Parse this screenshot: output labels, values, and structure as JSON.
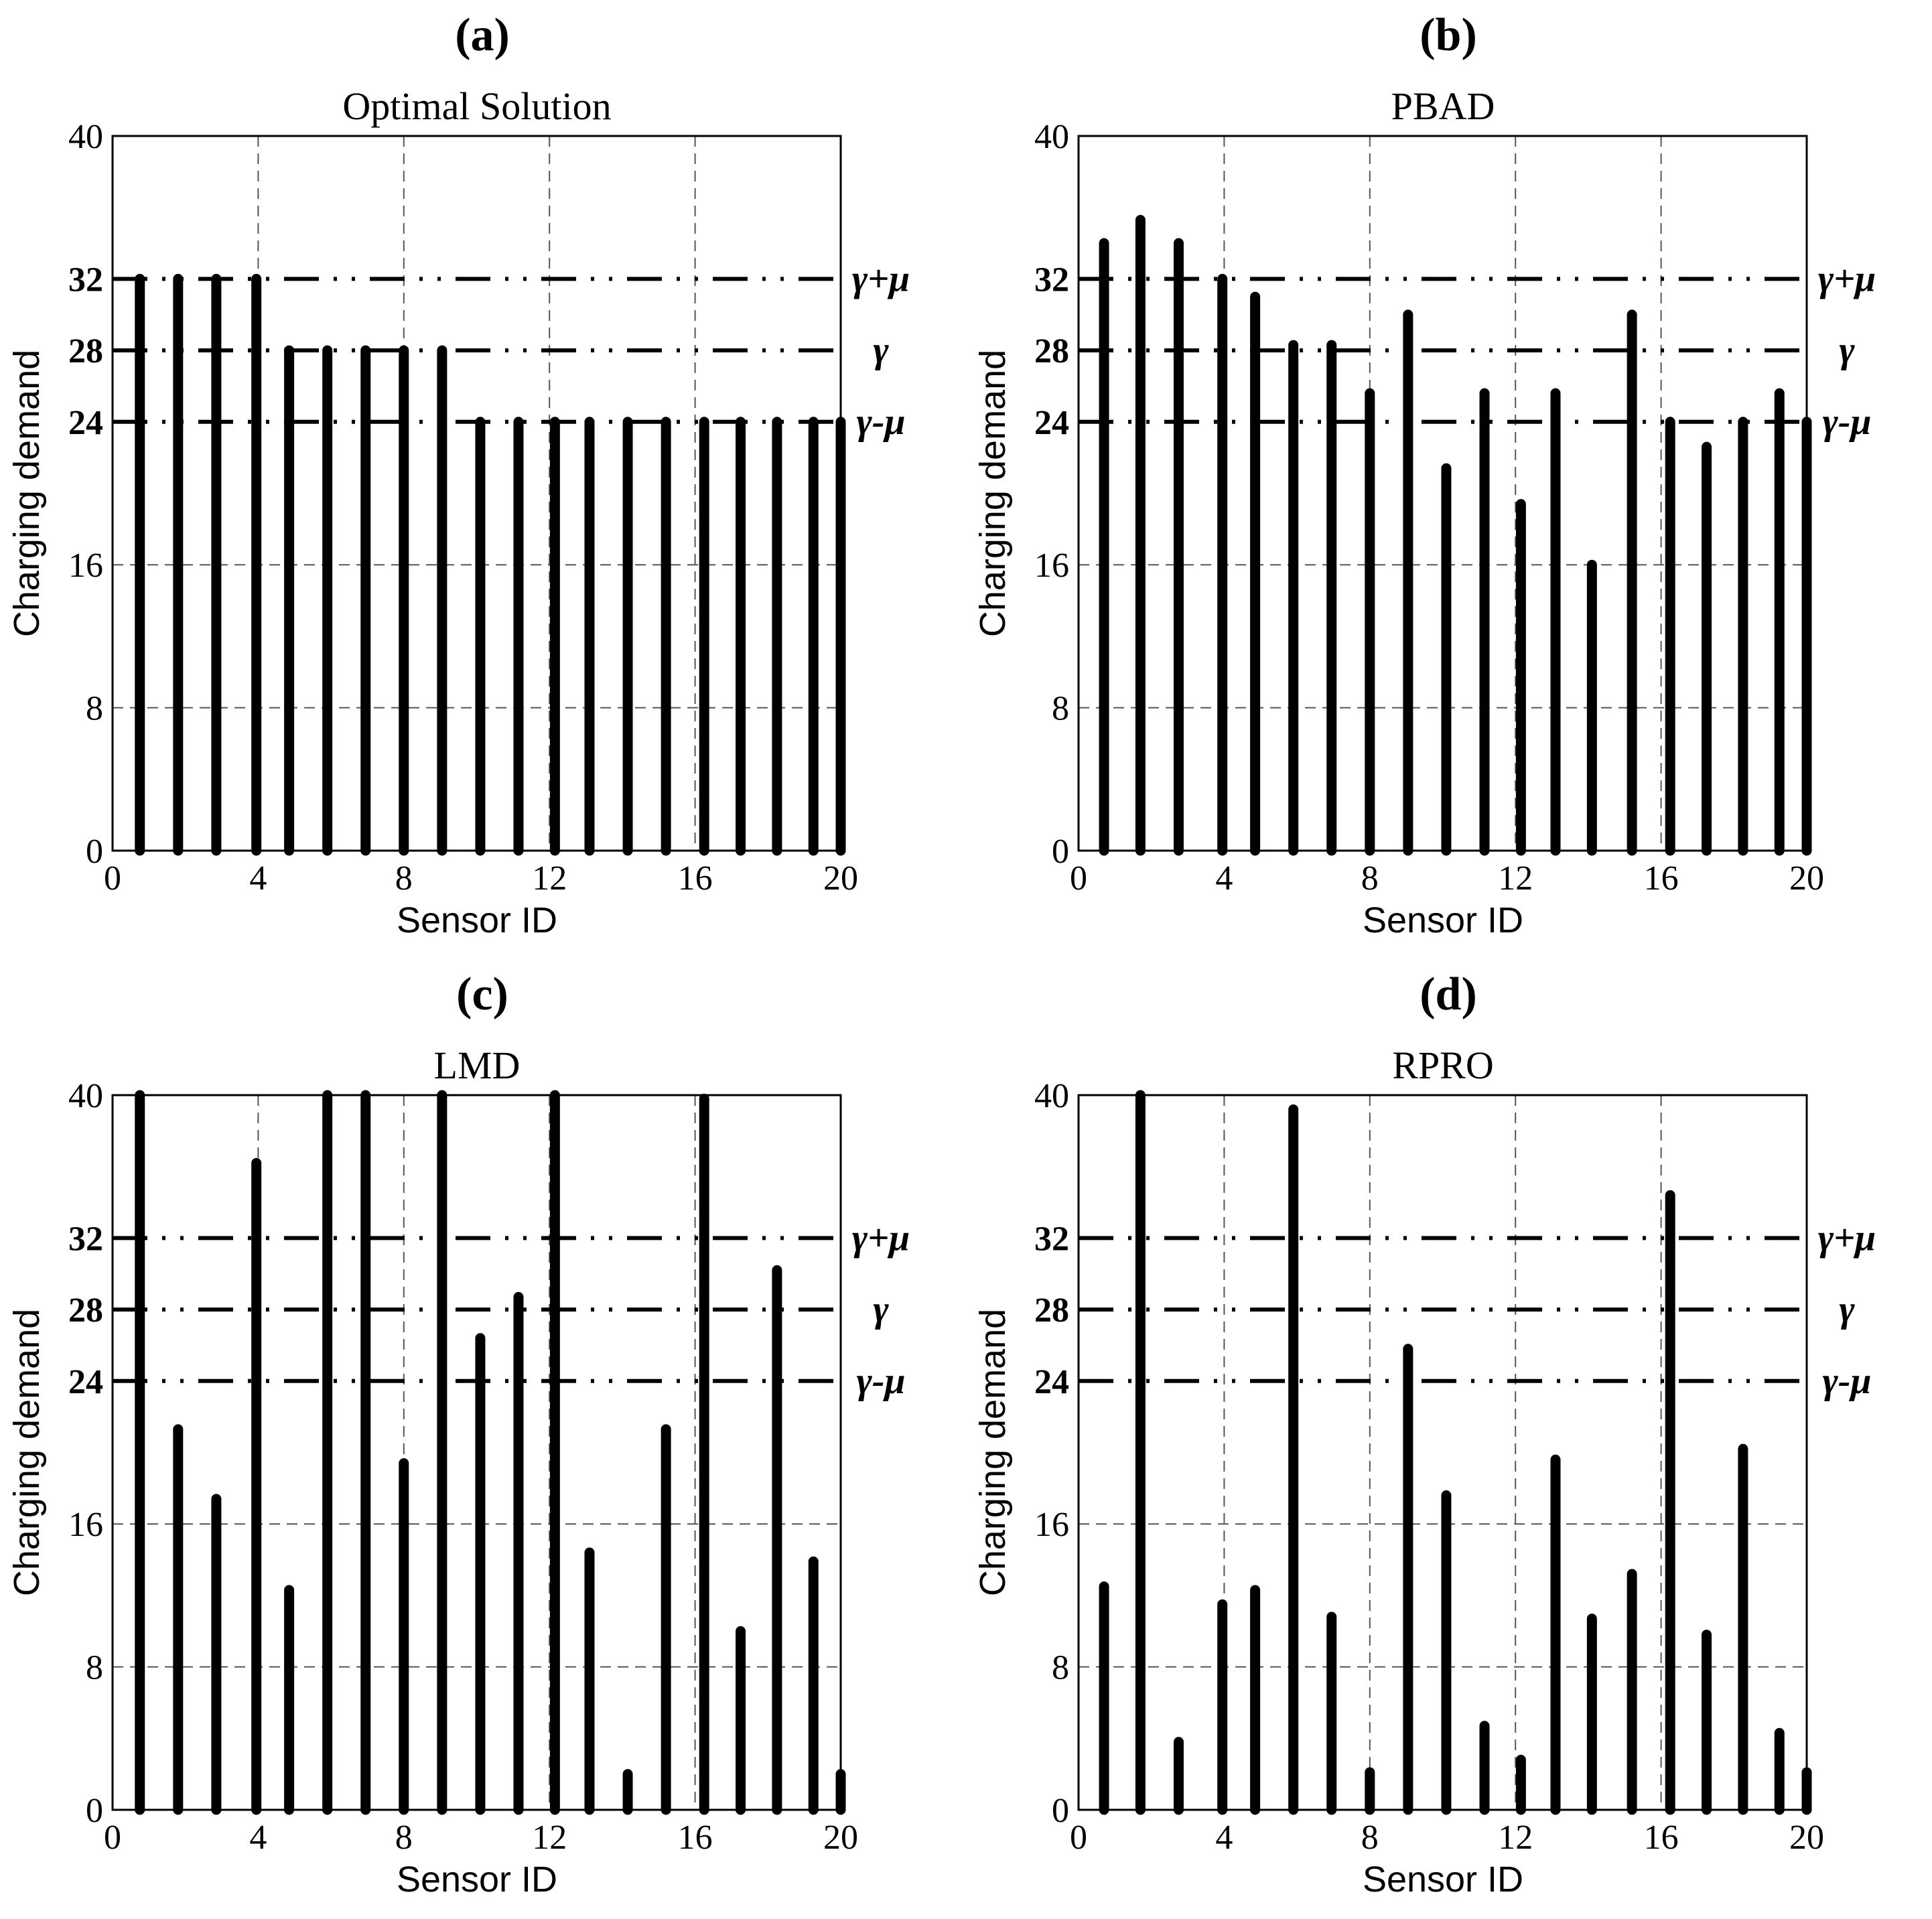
{
  "chart_data": [
    {
      "type": "bar",
      "panel_label": "(a)",
      "title": "Optimal Solution",
      "xlabel": "Sensor ID",
      "ylabel": "Charging demand",
      "xticks": [
        "0",
        "4",
        "8",
        "12",
        "16",
        "20"
      ],
      "yticks": [
        "0",
        "8",
        "16",
        "24",
        "28",
        "32",
        "40"
      ],
      "xlim": [
        0,
        20
      ],
      "ylim": [
        0,
        40
      ],
      "ref_lines": [
        {
          "value": 32,
          "label": "γ+μ"
        },
        {
          "value": 28,
          "label": "γ"
        },
        {
          "value": 24,
          "label": "γ-μ"
        }
      ],
      "x": [
        0.75,
        1.8,
        2.85,
        3.95,
        4.85,
        5.9,
        6.95,
        8.0,
        9.05,
        10.1,
        11.15,
        12.15,
        13.1,
        14.15,
        15.2,
        16.25,
        17.25,
        18.25,
        19.25,
        20.0
      ],
      "values": [
        32,
        32,
        32,
        32,
        28,
        28,
        28,
        28,
        28,
        24,
        24,
        24,
        24,
        24,
        24,
        24,
        24,
        24,
        24,
        24
      ]
    },
    {
      "type": "bar",
      "panel_label": "(b)",
      "title": "PBAD",
      "xlabel": "Sensor ID",
      "ylabel": "Charging demand",
      "xticks": [
        "0",
        "4",
        "8",
        "12",
        "16",
        "20"
      ],
      "yticks": [
        "0",
        "8",
        "16",
        "24",
        "28",
        "32",
        "40"
      ],
      "xlim": [
        0,
        20
      ],
      "ylim": [
        0,
        40
      ],
      "ref_lines": [
        {
          "value": 32,
          "label": "γ+μ"
        },
        {
          "value": 28,
          "label": "γ"
        },
        {
          "value": 24,
          "label": "γ-μ"
        }
      ],
      "x": [
        0.7,
        1.7,
        2.75,
        3.95,
        4.85,
        5.9,
        6.95,
        8.0,
        9.05,
        10.1,
        11.15,
        12.15,
        13.1,
        14.1,
        15.2,
        16.25,
        17.25,
        18.25,
        19.25,
        20.0
      ],
      "values": [
        34,
        35.3,
        34,
        32,
        31,
        28.3,
        28.3,
        25.6,
        30,
        21.4,
        25.6,
        19.4,
        25.6,
        16,
        30,
        24,
        22.6,
        24,
        25.6,
        24
      ]
    },
    {
      "type": "bar",
      "panel_label": "(c)",
      "title": "LMD",
      "xlabel": "Sensor ID",
      "ylabel": "Charging demand",
      "xticks": [
        "0",
        "4",
        "8",
        "12",
        "16",
        "20"
      ],
      "yticks": [
        "0",
        "8",
        "16",
        "24",
        "28",
        "32",
        "40"
      ],
      "xlim": [
        0,
        20
      ],
      "ylim": [
        0,
        40
      ],
      "ref_lines": [
        {
          "value": 32,
          "label": "γ+μ"
        },
        {
          "value": 28,
          "label": "γ"
        },
        {
          "value": 24,
          "label": "γ-μ"
        }
      ],
      "x": [
        0.75,
        1.8,
        2.85,
        3.95,
        4.85,
        5.9,
        6.95,
        8.0,
        9.05,
        10.1,
        11.15,
        12.15,
        13.1,
        14.15,
        15.2,
        16.25,
        17.25,
        18.25,
        19.25,
        20.0
      ],
      "values": [
        40,
        21.3,
        17.4,
        36.2,
        12.3,
        40,
        40,
        19.4,
        40,
        26.4,
        28.7,
        40,
        14.4,
        2,
        21.3,
        39.8,
        10,
        30.2,
        13.9,
        2
      ]
    },
    {
      "type": "bar",
      "panel_label": "(d)",
      "title": "RPRO",
      "xlabel": "Sensor ID",
      "ylabel": "Charging demand",
      "xticks": [
        "0",
        "4",
        "8",
        "12",
        "16",
        "20"
      ],
      "yticks": [
        "0",
        "8",
        "16",
        "24",
        "28",
        "32",
        "40"
      ],
      "xlim": [
        0,
        20
      ],
      "ylim": [
        0,
        40
      ],
      "ref_lines": [
        {
          "value": 32,
          "label": "γ+μ"
        },
        {
          "value": 28,
          "label": "γ"
        },
        {
          "value": 24,
          "label": "γ-μ"
        }
      ],
      "x": [
        0.7,
        1.7,
        2.75,
        3.95,
        4.85,
        5.9,
        6.95,
        8.0,
        9.05,
        10.1,
        11.15,
        12.15,
        13.1,
        14.1,
        15.2,
        16.25,
        17.25,
        18.25,
        19.25,
        20.0
      ],
      "values": [
        12.5,
        40,
        3.8,
        11.5,
        12.3,
        39.2,
        10.8,
        2.1,
        25.8,
        17.6,
        4.7,
        2.8,
        19.6,
        10.7,
        13.2,
        34.4,
        9.8,
        20.2,
        4.3,
        2.1
      ]
    }
  ]
}
